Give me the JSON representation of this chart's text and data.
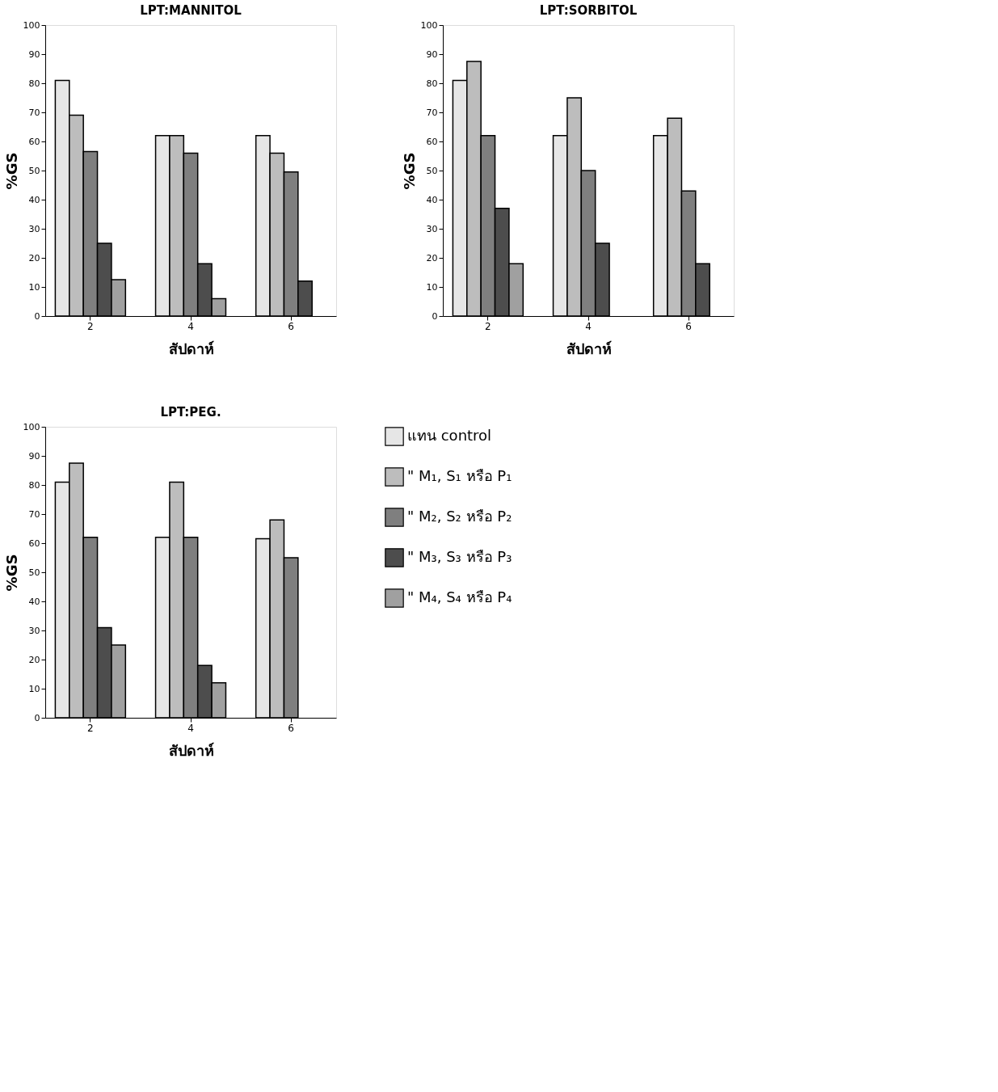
{
  "chart_data": [
    {
      "type": "bar",
      "title": "LPT:MANNITOL",
      "xlabel": "สัปดาห์",
      "ylabel": "%GS",
      "categories": [
        "2",
        "4",
        "6"
      ],
      "ylim": [
        0,
        100
      ],
      "yticks": [
        0,
        10,
        20,
        30,
        40,
        50,
        60,
        70,
        80,
        90,
        100
      ],
      "grid": false,
      "legend": false,
      "series": [
        {
          "color": "#e6e6e6",
          "values": [
            81,
            62,
            62
          ]
        },
        {
          "color": "#bdbdbd",
          "values": [
            69,
            62,
            56
          ]
        },
        {
          "color": "#7f7f7f",
          "values": [
            56.5,
            56,
            49.5
          ]
        },
        {
          "color": "#4d4d4d",
          "values": [
            25,
            18,
            12
          ]
        },
        {
          "color": "#a0a0a0",
          "values": [
            12.5,
            6,
            null
          ]
        }
      ]
    },
    {
      "type": "bar",
      "title": "LPT:SORBITOL",
      "xlabel": "สัปดาห์",
      "ylabel": "%GS",
      "categories": [
        "2",
        "4",
        "6"
      ],
      "ylim": [
        0,
        100
      ],
      "yticks": [
        0,
        10,
        20,
        30,
        40,
        50,
        60,
        70,
        80,
        90,
        100
      ],
      "grid": false,
      "legend": false,
      "series": [
        {
          "color": "#e6e6e6",
          "values": [
            81,
            62,
            62
          ]
        },
        {
          "color": "#bdbdbd",
          "values": [
            87.5,
            75,
            68
          ]
        },
        {
          "color": "#7f7f7f",
          "values": [
            62,
            50,
            43
          ]
        },
        {
          "color": "#4d4d4d",
          "values": [
            37,
            25,
            18
          ]
        },
        {
          "color": "#a0a0a0",
          "values": [
            18,
            null,
            null
          ]
        }
      ]
    },
    {
      "type": "bar",
      "title": "LPT:PEG.",
      "xlabel": "สัปดาห์",
      "ylabel": "%GS",
      "categories": [
        "2",
        "4",
        "6"
      ],
      "ylim": [
        0,
        100
      ],
      "yticks": [
        0,
        10,
        20,
        30,
        40,
        50,
        60,
        70,
        80,
        90,
        100
      ],
      "grid": false,
      "legend": "right",
      "series": [
        {
          "name": "แทน control",
          "color": "#e6e6e6",
          "values": [
            81,
            62,
            61.5
          ]
        },
        {
          "name": "\" M₁, S₁ หรือ P₁",
          "color": "#bdbdbd",
          "values": [
            87.5,
            81,
            68
          ]
        },
        {
          "name": "\" M₂, S₂ หรือ P₂",
          "color": "#7f7f7f",
          "values": [
            62,
            62,
            55
          ]
        },
        {
          "name": "\" M₃, S₃ หรือ P₃",
          "color": "#4d4d4d",
          "values": [
            31,
            18,
            null
          ]
        },
        {
          "name": "\" M₄, S₄ หรือ P₄",
          "color": "#a0a0a0",
          "values": [
            25,
            12,
            null
          ]
        }
      ]
    }
  ]
}
